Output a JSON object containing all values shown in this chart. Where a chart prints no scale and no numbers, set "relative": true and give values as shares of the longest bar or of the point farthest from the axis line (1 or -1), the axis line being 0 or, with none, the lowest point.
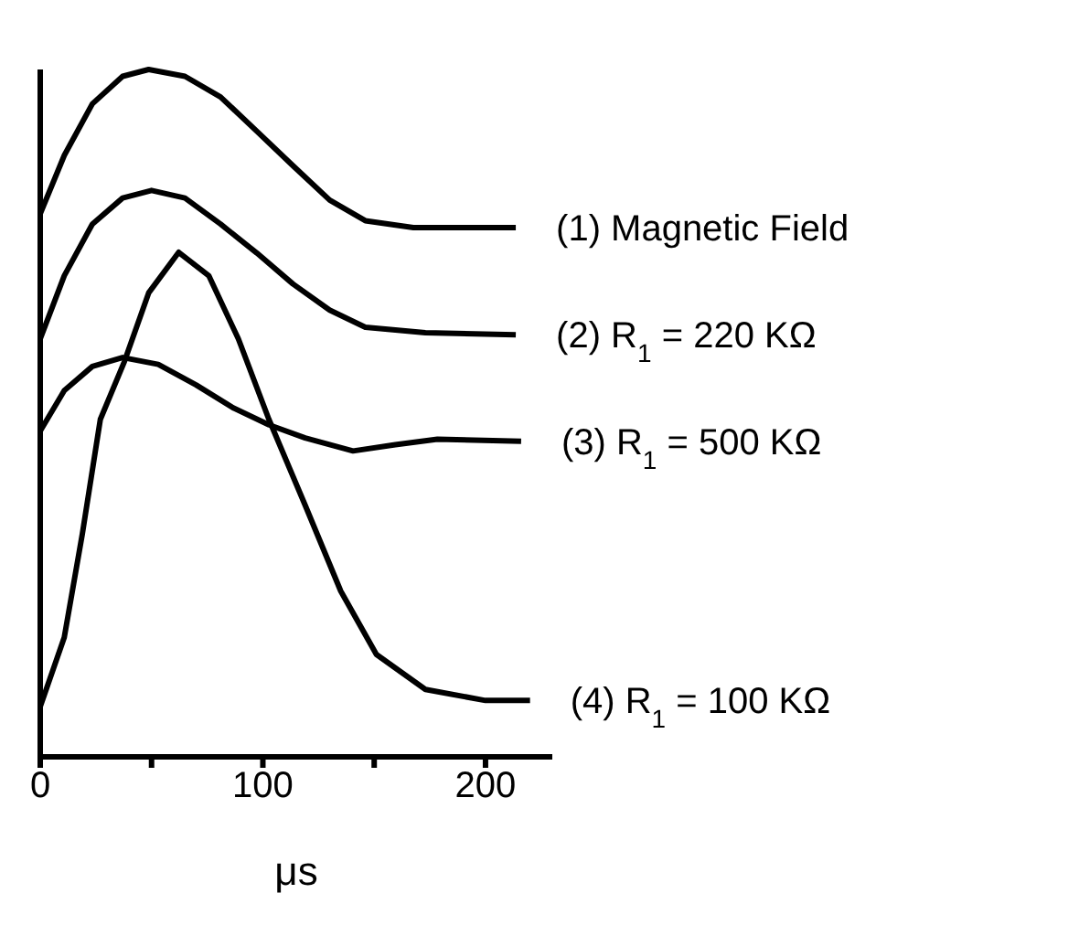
{
  "chart_data": {
    "type": "line",
    "relative": true,
    "xlabel": "μs",
    "xlim": [
      0,
      230
    ],
    "xticks": [
      0,
      {
        "value": 50,
        "label": null
      },
      100,
      {
        "value": 150,
        "label": null
      },
      200
    ],
    "legend": false,
    "grid": false,
    "marker": "none",
    "line_style": "solid",
    "series": [
      {
        "name": "(1)  Magnetic Field",
        "color": "#000000",
        "x": [
          0,
          10.8,
          23.4,
          37,
          48.7,
          65,
          81,
          97.3,
          113.5,
          130,
          146,
          167.6,
          189,
          213.6
        ],
        "values": [
          0.79,
          0.875,
          0.95,
          0.99,
          1,
          0.99,
          0.96,
          0.91,
          0.86,
          0.81,
          0.78,
          0.77,
          0.77,
          0.77
        ]
      },
      {
        "name": "(2)  R$_{1}$ = 220 KΩ",
        "color": "#000000",
        "x": [
          0,
          10.8,
          23.4,
          37,
          50,
          65,
          81,
          97.3,
          113.5,
          130,
          146,
          173,
          213.6
        ],
        "values": [
          0.608,
          0.7,
          0.775,
          0.813,
          0.824,
          0.813,
          0.775,
          0.733,
          0.688,
          0.65,
          0.625,
          0.617,
          0.614
        ]
      },
      {
        "name": "(3)  R$_{1}$ = 500 KΩ",
        "color": "#000000",
        "x": [
          0,
          10.8,
          23.4,
          37,
          53,
          70,
          86.5,
          102.7,
          119,
          140.5,
          159.5,
          178.4,
          216
        ],
        "values": [
          0.474,
          0.533,
          0.568,
          0.581,
          0.571,
          0.541,
          0.508,
          0.483,
          0.464,
          0.445,
          0.454,
          0.462,
          0.459
        ]
      },
      {
        "name": "(4)  R$_{1}$ = 100 KΩ",
        "color": "#000000",
        "x": [
          0,
          10.8,
          18.9,
          27,
          37.8,
          48.7,
          62.2,
          75.7,
          89,
          102.7,
          119,
          135,
          151,
          173,
          200,
          220
        ],
        "values": [
          0.073,
          0.174,
          0.324,
          0.491,
          0.575,
          0.675,
          0.734,
          0.7,
          0.608,
          0.491,
          0.366,
          0.241,
          0.149,
          0.098,
          0.082,
          0.082
        ]
      }
    ]
  }
}
